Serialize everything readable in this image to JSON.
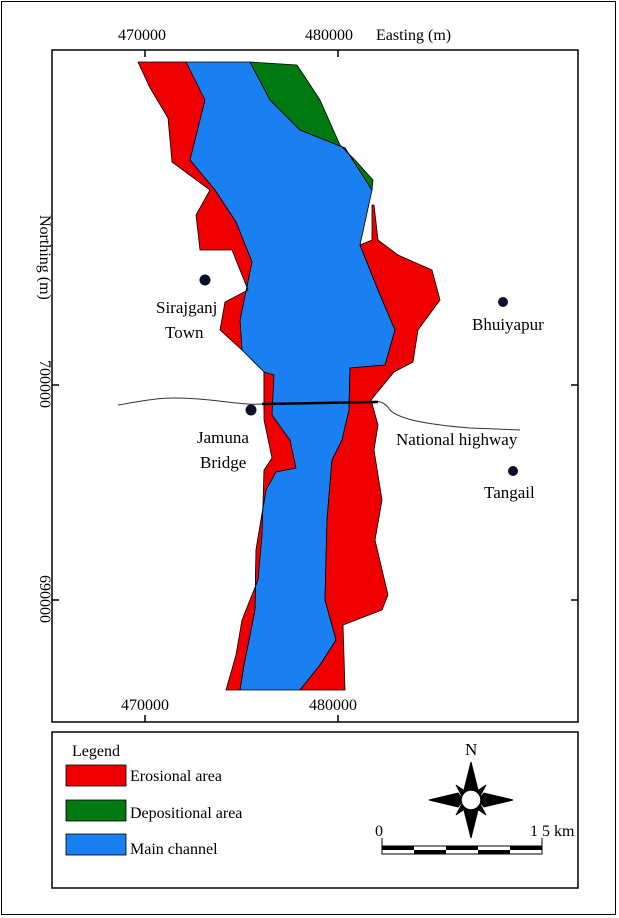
{
  "map": {
    "axis": {
      "top_ticks": [
        "470000",
        "480000"
      ],
      "easting_label": "Easting (m)",
      "bottom_ticks": [
        "470000",
        "480000"
      ],
      "northing_label": "Northing  (m)",
      "left_ticks": [
        "700000",
        "690000"
      ]
    },
    "places": [
      {
        "name": "sirajganj-town",
        "lines": [
          "Sirajganj",
          "Town"
        ]
      },
      {
        "name": "bhuiyapur",
        "lines": [
          "Bhuiyapur"
        ]
      },
      {
        "name": "jamuna-bridge",
        "lines": [
          "Jamuna",
          "Bridge"
        ]
      },
      {
        "name": "tangail",
        "lines": [
          "Tangail"
        ]
      }
    ],
    "road_label": "National  highway",
    "colors": {
      "erosional": "#ee0000",
      "depositional": "#007a10",
      "main_channel": "#1a7ff0"
    }
  },
  "legend": {
    "title": "Legend",
    "items": [
      {
        "label": "Erosional area",
        "color": "#ee0000"
      },
      {
        "label": "Depositional area",
        "color": "#007a10"
      },
      {
        "label": "Main channel",
        "color": "#1a7ff0"
      }
    ]
  },
  "north_arrow": {
    "label": "N",
    "icon": "compass-rose-icon"
  },
  "scale_bar": {
    "start": "0",
    "end": "1 5 km"
  }
}
